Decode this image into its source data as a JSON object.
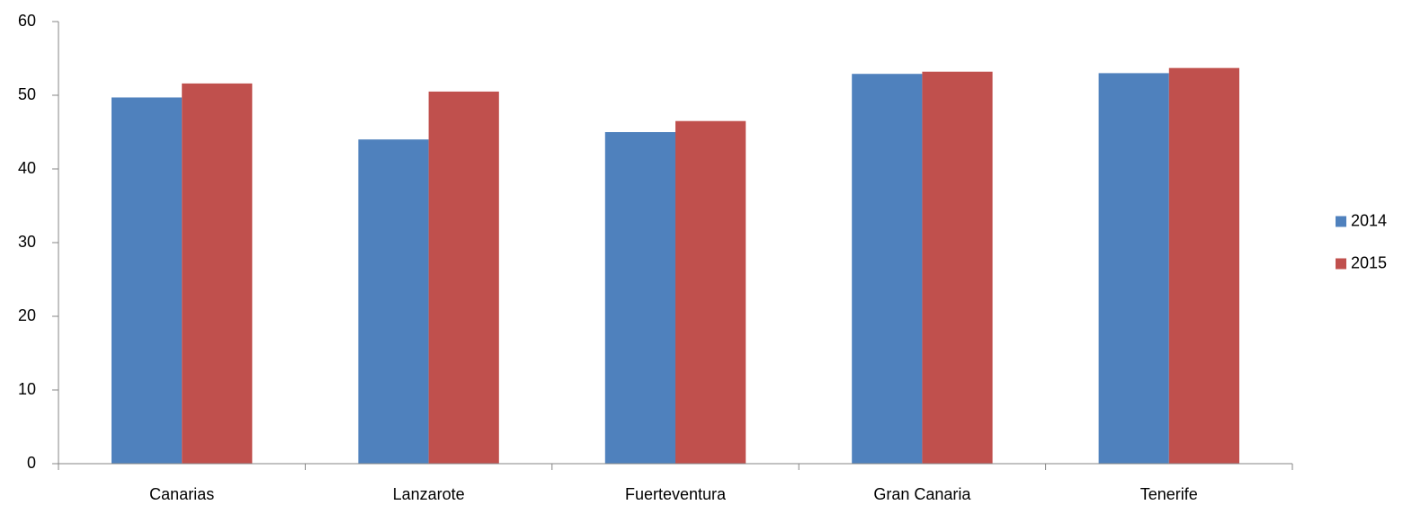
{
  "chart_data": {
    "type": "bar",
    "categories": [
      "Canarias",
      "Lanzarote",
      "Fuerteventura",
      "Gran Canaria",
      "Tenerife"
    ],
    "series": [
      {
        "name": "2014",
        "color": "#4f81bd",
        "values": [
          49.7,
          44.0,
          45.0,
          52.9,
          53.0
        ]
      },
      {
        "name": "2015",
        "color": "#c0504d",
        "values": [
          51.6,
          50.5,
          46.5,
          53.2,
          53.7
        ]
      }
    ],
    "ylim": [
      0,
      60
    ],
    "yticks": [
      0,
      10,
      20,
      30,
      40,
      50,
      60
    ],
    "grid": false,
    "legend": "right"
  }
}
